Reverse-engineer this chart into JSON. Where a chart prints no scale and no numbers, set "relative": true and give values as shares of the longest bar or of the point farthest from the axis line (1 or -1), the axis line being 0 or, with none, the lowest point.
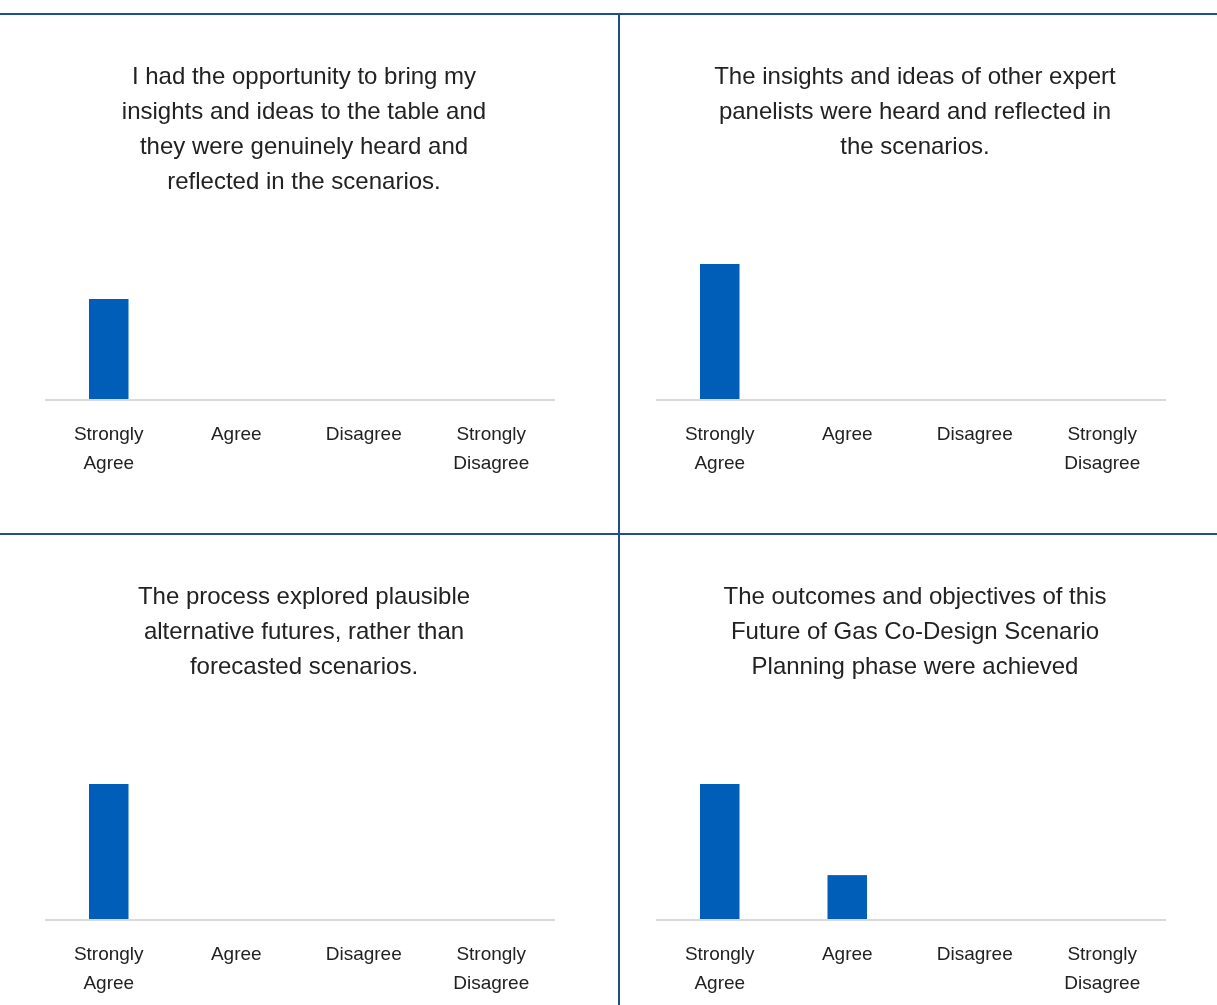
{
  "chart_data": [
    {
      "type": "bar",
      "title": "I had the opportunity to bring my insights and ideas to the table and they were genuinely heard and reflected in the scenarios.",
      "categories": [
        "Strongly Agree",
        "Agree",
        "Disagree",
        "Strongly Disagree"
      ],
      "values": [
        1,
        0,
        0,
        0
      ],
      "color": "#005eb8",
      "relative": true
    },
    {
      "type": "bar",
      "title": "The insights and ideas of other expert panelists were heard and reflected in the scenarios.",
      "categories": [
        "Strongly Agree",
        "Agree",
        "Disagree",
        "Strongly Disagree"
      ],
      "values": [
        1,
        0,
        0,
        0
      ],
      "color": "#005eb8",
      "relative": true
    },
    {
      "type": "bar",
      "title": "The process explored plausible alternative futures, rather than forecasted scenarios.",
      "categories": [
        "Strongly Agree",
        "Agree",
        "Disagree",
        "Strongly Disagree"
      ],
      "values": [
        1,
        0,
        0,
        0
      ],
      "color": "#005eb8",
      "relative": true
    },
    {
      "type": "bar",
      "title": "The outcomes and objectives of this Future of Gas Co-Design Scenario Planning phase were achieved",
      "categories": [
        "Strongly Agree",
        "Agree",
        "Disagree",
        "Strongly Disagree"
      ],
      "values": [
        1,
        0.33,
        0,
        0
      ],
      "color": "#005eb8",
      "relative": true
    }
  ]
}
